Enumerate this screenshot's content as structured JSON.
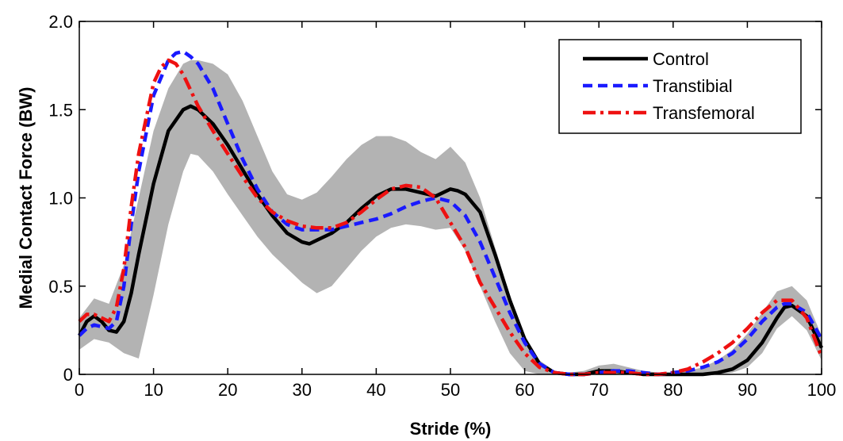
{
  "chart_data": {
    "type": "line",
    "title": "",
    "xlabel": "Stride (%)",
    "ylabel": "Medial Contact Force (BW)",
    "xlim": [
      0,
      100
    ],
    "ylim": [
      0,
      2.0
    ],
    "xticks": [
      0,
      10,
      20,
      30,
      40,
      50,
      60,
      70,
      80,
      90,
      100
    ],
    "xtick_labels": [
      "0",
      "10",
      "20",
      "30",
      "40",
      "50",
      "60",
      "70",
      "80",
      "90",
      "100"
    ],
    "yticks": [
      0,
      0.5,
      1.0,
      1.5,
      2.0
    ],
    "ytick_labels": [
      "0",
      "0.5",
      "1.0",
      "1.5",
      "2.0"
    ],
    "grid": false,
    "legend_position": "top-right",
    "band": {
      "color": "#b3b3b3",
      "x": [
        0,
        2,
        4,
        6,
        8,
        10,
        12,
        14,
        15,
        16,
        18,
        20,
        22,
        24,
        26,
        28,
        30,
        32,
        34,
        36,
        38,
        40,
        42,
        44,
        46,
        48,
        50,
        52,
        54,
        56,
        58,
        60,
        62,
        64,
        66,
        68,
        70,
        72,
        74,
        76,
        78,
        80,
        82,
        84,
        86,
        88,
        90,
        92,
        94,
        96,
        98,
        100
      ],
      "upper": [
        0.32,
        0.43,
        0.4,
        0.62,
        1.0,
        1.38,
        1.62,
        1.76,
        1.78,
        1.78,
        1.76,
        1.7,
        1.55,
        1.35,
        1.15,
        1.02,
        0.99,
        1.03,
        1.12,
        1.22,
        1.3,
        1.35,
        1.35,
        1.32,
        1.26,
        1.22,
        1.29,
        1.2,
        1.0,
        0.72,
        0.45,
        0.22,
        0.08,
        0.02,
        0.01,
        0.02,
        0.05,
        0.06,
        0.04,
        0.02,
        0.01,
        0.01,
        0.02,
        0.04,
        0.08,
        0.14,
        0.23,
        0.35,
        0.47,
        0.5,
        0.42,
        0.22
      ],
      "lower": [
        0.14,
        0.2,
        0.18,
        0.12,
        0.09,
        0.45,
        0.85,
        1.15,
        1.25,
        1.24,
        1.15,
        1.02,
        0.9,
        0.78,
        0.68,
        0.6,
        0.52,
        0.46,
        0.5,
        0.6,
        0.7,
        0.78,
        0.83,
        0.85,
        0.84,
        0.82,
        0.83,
        0.7,
        0.5,
        0.3,
        0.12,
        0.02,
        0.0,
        0.0,
        0.0,
        0.0,
        0.0,
        0.0,
        0.0,
        0.0,
        0.0,
        0.0,
        0.0,
        0.0,
        0.0,
        0.01,
        0.04,
        0.12,
        0.26,
        0.33,
        0.25,
        0.08
      ]
    },
    "series": [
      {
        "name": "Control",
        "color": "#000000",
        "dash": "solid",
        "x": [
          0,
          1,
          2,
          3,
          4,
          5,
          6,
          7,
          8,
          10,
          12,
          14,
          15,
          16,
          18,
          20,
          22,
          24,
          26,
          28,
          30,
          31,
          32,
          34,
          36,
          38,
          40,
          42,
          44,
          46,
          48,
          50,
          51,
          52,
          54,
          56,
          58,
          60,
          62,
          64,
          66,
          68,
          70,
          72,
          74,
          76,
          78,
          80,
          82,
          84,
          86,
          88,
          90,
          92,
          94,
          95,
          96,
          98,
          100
        ],
        "y": [
          0.22,
          0.3,
          0.33,
          0.3,
          0.25,
          0.24,
          0.3,
          0.46,
          0.68,
          1.08,
          1.38,
          1.5,
          1.52,
          1.5,
          1.42,
          1.3,
          1.16,
          1.02,
          0.9,
          0.8,
          0.75,
          0.74,
          0.76,
          0.8,
          0.86,
          0.94,
          1.01,
          1.05,
          1.05,
          1.03,
          1.01,
          1.05,
          1.04,
          1.02,
          0.92,
          0.68,
          0.42,
          0.2,
          0.06,
          0.01,
          0.0,
          0.0,
          0.02,
          0.02,
          0.01,
          0.0,
          0.0,
          0.0,
          0.0,
          0.0,
          0.01,
          0.03,
          0.08,
          0.18,
          0.32,
          0.38,
          0.39,
          0.33,
          0.15
        ]
      },
      {
        "name": "Transtibial",
        "color": "#1a1aff",
        "dash": "dash",
        "x": [
          0,
          1,
          2,
          3,
          4,
          5,
          6,
          7,
          8,
          10,
          12,
          13,
          14,
          15,
          16,
          18,
          20,
          22,
          24,
          26,
          28,
          30,
          32,
          34,
          36,
          38,
          40,
          42,
          44,
          46,
          48,
          50,
          52,
          54,
          56,
          58,
          60,
          62,
          64,
          66,
          68,
          70,
          72,
          74,
          76,
          78,
          80,
          82,
          84,
          86,
          88,
          90,
          92,
          94,
          95,
          96,
          98,
          100
        ],
        "y": [
          0.22,
          0.26,
          0.28,
          0.27,
          0.26,
          0.3,
          0.5,
          0.85,
          1.15,
          1.58,
          1.78,
          1.82,
          1.83,
          1.8,
          1.76,
          1.62,
          1.42,
          1.22,
          1.05,
          0.92,
          0.85,
          0.82,
          0.82,
          0.82,
          0.84,
          0.86,
          0.88,
          0.91,
          0.95,
          0.98,
          1.0,
          0.98,
          0.9,
          0.75,
          0.55,
          0.35,
          0.18,
          0.06,
          0.01,
          0.0,
          0.0,
          0.01,
          0.02,
          0.02,
          0.01,
          0.0,
          0.01,
          0.02,
          0.04,
          0.07,
          0.12,
          0.2,
          0.3,
          0.38,
          0.4,
          0.4,
          0.35,
          0.2
        ]
      },
      {
        "name": "Transfemoral",
        "color": "#ee1111",
        "dash": "dashdot",
        "x": [
          0,
          1,
          2,
          3,
          4,
          5,
          6,
          7,
          8,
          10,
          11,
          12,
          13,
          14,
          16,
          18,
          20,
          22,
          24,
          26,
          28,
          30,
          32,
          34,
          36,
          38,
          40,
          42,
          44,
          46,
          48,
          50,
          52,
          54,
          56,
          58,
          60,
          62,
          64,
          66,
          68,
          70,
          72,
          74,
          76,
          78,
          80,
          82,
          84,
          86,
          88,
          90,
          92,
          94,
          96,
          98,
          100
        ],
        "y": [
          0.3,
          0.34,
          0.34,
          0.32,
          0.3,
          0.38,
          0.6,
          0.95,
          1.25,
          1.65,
          1.74,
          1.78,
          1.76,
          1.7,
          1.52,
          1.38,
          1.25,
          1.12,
          1.0,
          0.92,
          0.87,
          0.84,
          0.83,
          0.83,
          0.86,
          0.92,
          0.99,
          1.05,
          1.07,
          1.06,
          1.0,
          0.86,
          0.72,
          0.52,
          0.38,
          0.24,
          0.12,
          0.04,
          0.01,
          0.0,
          0.0,
          0.01,
          0.01,
          0.01,
          0.0,
          0.0,
          0.01,
          0.03,
          0.07,
          0.12,
          0.18,
          0.26,
          0.35,
          0.42,
          0.42,
          0.32,
          0.1
        ]
      }
    ]
  }
}
